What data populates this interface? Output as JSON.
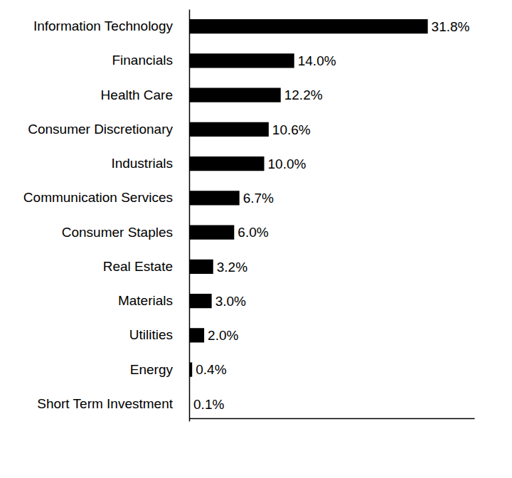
{
  "chart_data": {
    "type": "bar",
    "orientation": "horizontal",
    "categories": [
      "Information Technology",
      "Financials",
      "Health Care",
      "Consumer Discretionary",
      "Industrials",
      "Communication Services",
      "Consumer Staples",
      "Real Estate",
      "Materials",
      "Utilities",
      "Energy",
      "Short Term Investment"
    ],
    "values": [
      31.8,
      14.0,
      12.2,
      10.6,
      10.0,
      6.7,
      6.0,
      3.2,
      3.0,
      2.0,
      0.4,
      0.1
    ],
    "value_labels": [
      "31.8%",
      "14.0%",
      "12.2%",
      "10.6%",
      "10.0%",
      "6.7%",
      "6.0%",
      "3.2%",
      "3.0%",
      "2.0%",
      "0.4%",
      "0.1%"
    ],
    "color": "#000000",
    "xlim": [
      0,
      38
    ],
    "data_labels": true,
    "tick_labels": "y",
    "grid": false
  }
}
